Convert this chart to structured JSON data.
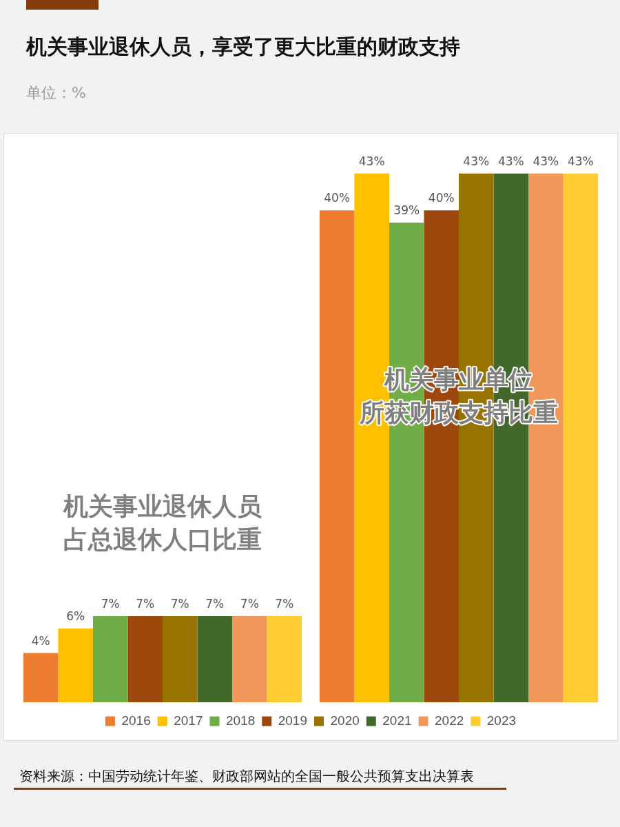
{
  "chart_data": {
    "type": "bar",
    "title": "机关事业退休人员，享受了更大比重的财政支持",
    "subtitle": "单位：%",
    "annotations": [
      "资料来源：中国劳动统计年鉴、财政部网站的全国一般公共预算支出决算表"
    ],
    "categories": [
      "机关事业退休人员占总退休人口比重",
      "机关事业单位所获财政支持比重"
    ],
    "legend": "bottom",
    "grid": false,
    "series": [
      {
        "name": "2016",
        "color": "#ed7d31",
        "values": [
          4,
          40
        ],
        "value_labels": [
          "4%",
          "40%"
        ]
      },
      {
        "name": "2017",
        "color": "#ffc000",
        "values": [
          6,
          43
        ],
        "value_labels": [
          "6%",
          "43%"
        ]
      },
      {
        "name": "2018",
        "color": "#70ad47",
        "values": [
          7,
          39
        ],
        "value_labels": [
          "7%",
          "39%"
        ]
      },
      {
        "name": "2019",
        "color": "#9e480e",
        "values": [
          7,
          40
        ],
        "value_labels": [
          "7%",
          "40%"
        ]
      },
      {
        "name": "2020",
        "color": "#997300",
        "values": [
          7,
          43
        ],
        "value_labels": [
          "7%",
          "43%"
        ]
      },
      {
        "name": "2021",
        "color": "#43682b",
        "values": [
          7,
          43
        ],
        "value_labels": [
          "7%",
          "43%"
        ]
      },
      {
        "name": "2022",
        "color": "#f1975a",
        "values": [
          7,
          43
        ],
        "value_labels": [
          "7%",
          "43%"
        ]
      },
      {
        "name": "2023",
        "color": "#ffcd33",
        "values": [
          7,
          43
        ],
        "value_labels": [
          "7%",
          "43%"
        ]
      }
    ]
  }
}
